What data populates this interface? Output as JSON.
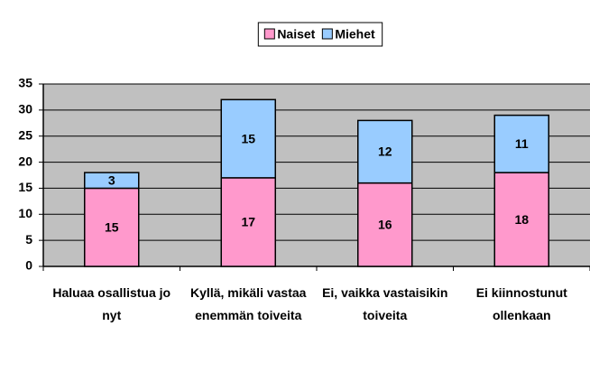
{
  "chart_data": {
    "type": "bar",
    "stacked": true,
    "categories": [
      "Haluaa osallistua jo nyt",
      "Kyllä, mikäli vastaa enemmän toiveita",
      "Ei, vaikka vastaisikin toiveita",
      "Ei kiinnostunut ollenkaan"
    ],
    "series": [
      {
        "name": "Naiset",
        "color": "#ff99cc",
        "values": [
          15,
          17,
          16,
          18
        ]
      },
      {
        "name": "Miehet",
        "color": "#99ccff",
        "values": [
          3,
          15,
          12,
          11
        ]
      }
    ],
    "ylim": [
      0,
      35
    ],
    "yticks": [
      0,
      5,
      10,
      15,
      20,
      25,
      30,
      35
    ],
    "grid": true,
    "legend": "top"
  }
}
